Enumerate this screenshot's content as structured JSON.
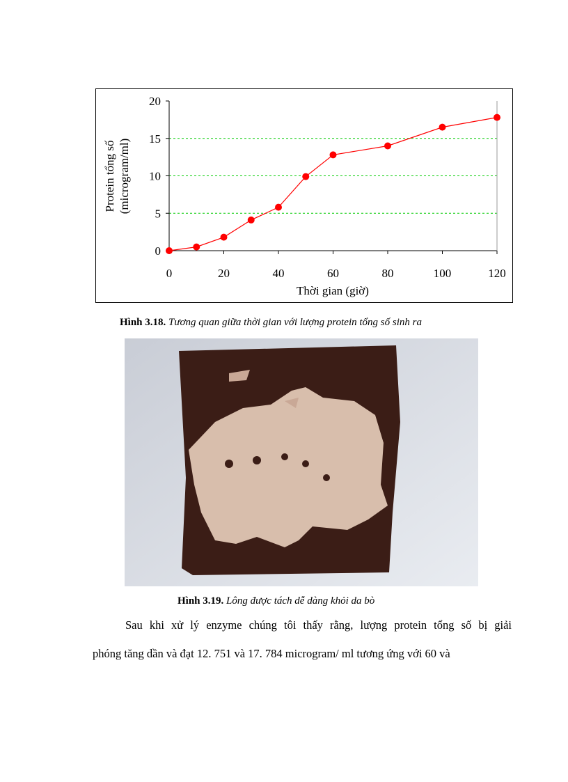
{
  "chart_data": {
    "type": "line",
    "x_label": "Thời gian (giờ)",
    "y_label": [
      "Protein tổng số",
      "(microgram/ml)"
    ],
    "x": [
      0,
      10,
      20,
      30,
      40,
      50,
      60,
      80,
      100,
      120
    ],
    "series": [
      {
        "name": "Protein tổng số",
        "color": "#ff0000",
        "values": [
          0,
          0.5,
          1.8,
          4.1,
          5.8,
          9.9,
          12.8,
          14.0,
          16.5,
          17.8
        ]
      }
    ],
    "xlim": [
      0,
      120
    ],
    "xticks": [
      0,
      20,
      40,
      60,
      80,
      100,
      120
    ],
    "ylim": [
      0,
      20
    ],
    "yticks": [
      0,
      5,
      10,
      15,
      20
    ],
    "grid": true,
    "grid_color": "#00cc00"
  },
  "captions": [
    {
      "label": "Hình 3.18.",
      "text": "Tương quan giữa thời gian với lượng protein tổng số sinh ra"
    },
    {
      "label": "Hình 3.19.",
      "text": "Lông được tách dễ dàng khỏi da bò"
    }
  ],
  "paragraph": [
    "Sau khi xử lý enzyme chúng tôi thấy rằng, lượng protein tổng số bị giải",
    "phóng tăng dần và đạt 12. 751 và 17. 784 microgram/ ml tương ứng với 60 và"
  ]
}
